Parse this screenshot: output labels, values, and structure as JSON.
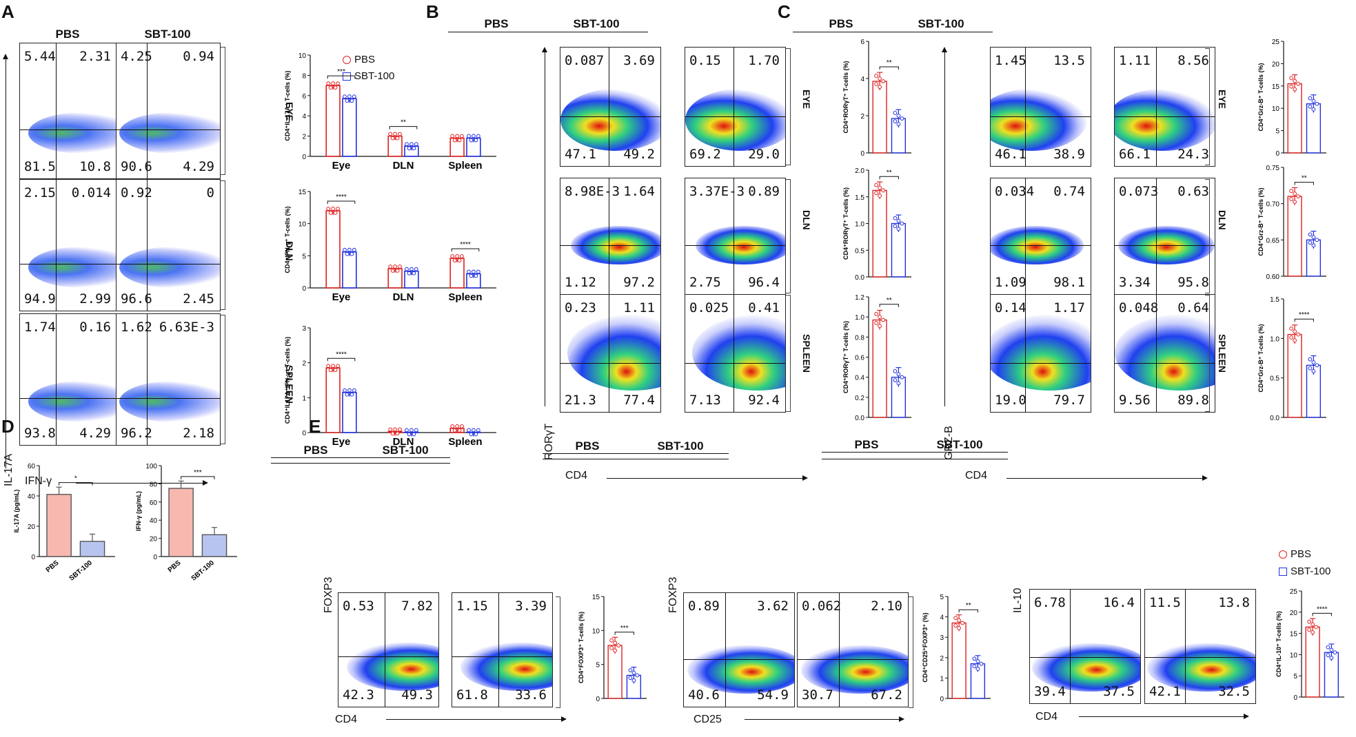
{
  "panels": {
    "A": "A",
    "B": "B",
    "C": "C",
    "D": "D",
    "E": "E"
  },
  "groups": {
    "pbs": "PBS",
    "sbt": "SBT-100"
  },
  "rows": {
    "eye": "EYE",
    "dln": "DLN",
    "spleen": "SPLEEN"
  },
  "axes": {
    "il17a": "IL-17A",
    "ifng": "IFN-γ",
    "rorgt": "RORγT",
    "cd4": "CD4",
    "grzb": "GRZ-B",
    "foxp3": "FOXP3",
    "cd25": "CD25",
    "il10": "IL-10"
  },
  "flow": {
    "A": [
      [
        [
          "5.44",
          "2.31",
          "81.5",
          "10.8"
        ],
        [
          "4.25",
          "0.94",
          "90.6",
          "4.29"
        ]
      ],
      [
        [
          "2.15",
          "0.014",
          "94.9",
          "2.99"
        ],
        [
          "0.92",
          "0",
          "96.6",
          "2.45"
        ]
      ],
      [
        [
          "1.74",
          "0.16",
          "93.8",
          "4.29"
        ],
        [
          "1.62",
          "6.63E-3",
          "96.2",
          "2.18"
        ]
      ]
    ],
    "B": [
      [
        [
          "0.087",
          "3.69",
          "47.1",
          "49.2"
        ],
        [
          "0.15",
          "1.70",
          "69.2",
          "29.0"
        ]
      ],
      [
        [
          "8.98E-3",
          "1.64",
          "1.12",
          "97.2"
        ],
        [
          "3.37E-3",
          "0.89",
          "2.75",
          "96.4"
        ]
      ],
      [
        [
          "0.23",
          "1.11",
          "21.3",
          "77.4"
        ],
        [
          "0.025",
          "0.41",
          "7.13",
          "92.4"
        ]
      ]
    ],
    "C": [
      [
        [
          "1.45",
          "13.5",
          "46.1",
          "38.9"
        ],
        [
          "1.11",
          "8.56",
          "66.1",
          "24.3"
        ]
      ],
      [
        [
          "0.034",
          "0.74",
          "1.09",
          "98.1"
        ],
        [
          "0.073",
          "0.63",
          "3.34",
          "95.8"
        ]
      ],
      [
        [
          "0.14",
          "1.17",
          "19.0",
          "79.7"
        ],
        [
          "0.048",
          "0.64",
          "9.56",
          "89.8"
        ]
      ]
    ],
    "E": [
      [
        [
          "0.53",
          "7.82",
          "42.3",
          "49.3"
        ],
        [
          "1.15",
          "3.39",
          "61.8",
          "33.6"
        ]
      ],
      [
        [
          "0.89",
          "3.62",
          "40.6",
          "54.9"
        ],
        [
          "0.062",
          "2.10",
          "30.7",
          "67.2"
        ]
      ],
      [
        [
          "6.78",
          "16.4",
          "39.4",
          "37.5"
        ],
        [
          "11.5",
          "13.8",
          "42.1",
          "32.5"
        ]
      ]
    ]
  },
  "colors": {
    "pbs": "#e02020",
    "sbt": "#2030e0",
    "pbs_fill": "#f7b8b0",
    "sbt_fill": "#b8c4f0"
  },
  "chart_data": [
    {
      "id": "A1",
      "type": "bar",
      "categories": [
        "Eye",
        "DLN",
        "Spleen"
      ],
      "ylabel": "CD4⁺IL-17A⁺ T-cells (%)",
      "ylim": [
        0,
        10
      ],
      "yticks": [
        "0",
        "2",
        "4",
        "6",
        "8",
        "10"
      ],
      "series": [
        {
          "name": "PBS",
          "values": [
            7.0,
            2.0,
            1.8
          ]
        },
        {
          "name": "SBT-100",
          "values": [
            5.7,
            1.0,
            1.8
          ]
        }
      ],
      "sig": [
        {
          "cat": 0,
          "label": "***"
        },
        {
          "cat": 1,
          "label": "**"
        }
      ]
    },
    {
      "id": "A2",
      "type": "bar",
      "categories": [
        "Eye",
        "DLN",
        "Spleen"
      ],
      "ylabel": "CD4⁺IFN-γ⁺ T-cells (%)",
      "ylim": [
        0,
        15
      ],
      "yticks": [
        "0",
        "5",
        "10",
        "15"
      ],
      "series": [
        {
          "name": "PBS",
          "values": [
            12.0,
            3.0,
            4.6
          ]
        },
        {
          "name": "SBT-100",
          "values": [
            5.6,
            2.6,
            2.2
          ]
        }
      ],
      "sig": [
        {
          "cat": 0,
          "label": "****"
        },
        {
          "cat": 2,
          "label": "****"
        }
      ]
    },
    {
      "id": "A3",
      "type": "bar",
      "categories": [
        "Eye",
        "DLN",
        "Spleen"
      ],
      "ylabel": "CD4⁺IL17A⁺IFN-γ⁺ T-cells (%)",
      "ylim": [
        0,
        3
      ],
      "yticks": [
        "0",
        "1",
        "2",
        "3"
      ],
      "series": [
        {
          "name": "PBS",
          "values": [
            1.85,
            0.03,
            0.12
          ]
        },
        {
          "name": "SBT-100",
          "values": [
            1.15,
            0.01,
            0.01
          ]
        }
      ],
      "sig": [
        {
          "cat": 0,
          "label": "****"
        }
      ]
    },
    {
      "id": "B1",
      "type": "bar",
      "categories": [
        "PBS",
        "SBT-100"
      ],
      "ylabel": "CD4⁺RORγT⁺ T-cells (%)",
      "ylim": [
        0,
        6
      ],
      "yticks": [
        "0",
        "2",
        "4",
        "6"
      ],
      "values": [
        3.85,
        1.85
      ],
      "sig": "**"
    },
    {
      "id": "B2",
      "type": "bar",
      "categories": [
        "PBS",
        "SBT-100"
      ],
      "ylabel": "CD4⁺RORγT⁺ T-cells (%)",
      "ylim": [
        0,
        2
      ],
      "yticks": [
        "0.0",
        "0.5",
        "1.0",
        "1.5",
        "2.0"
      ],
      "values": [
        1.62,
        1.0
      ],
      "sig": "**"
    },
    {
      "id": "B3",
      "type": "bar",
      "categories": [
        "PBS",
        "SBT-100"
      ],
      "ylabel": "CD4⁺RORγT⁺ T-cells (%)",
      "ylim": [
        0,
        1.2
      ],
      "yticks": [
        "0.0",
        "0.2",
        "0.4",
        "0.6",
        "0.8",
        "1.0",
        "1.2"
      ],
      "values": [
        0.97,
        0.4
      ],
      "sig": "**"
    },
    {
      "id": "C1",
      "type": "bar",
      "categories": [
        "PBS",
        "SBT-100"
      ],
      "ylabel": "CD4⁺Grz-B⁺ T-cells (%)",
      "ylim": [
        0,
        25
      ],
      "yticks": [
        "0",
        "5",
        "10",
        "15",
        "20",
        "25"
      ],
      "values": [
        15.5,
        11.0
      ],
      "sig": ""
    },
    {
      "id": "C2",
      "type": "bar",
      "categories": [
        "PBS",
        "SBT-100"
      ],
      "ylabel": "CD4⁺Grz-B⁺ T-cells (%)",
      "ylim": [
        0.6,
        0.75
      ],
      "yticks": [
        "0.60",
        "0.65",
        "0.70",
        "0.75"
      ],
      "values": [
        0.71,
        0.65
      ],
      "sig": "**"
    },
    {
      "id": "C3",
      "type": "bar",
      "categories": [
        "PBS",
        "SBT-100"
      ],
      "ylabel": "CD4⁺Grz-B⁺ T-cells (%)",
      "ylim": [
        0,
        1.5
      ],
      "yticks": [
        "0.0",
        "0.5",
        "1.0",
        "1.5"
      ],
      "values": [
        1.05,
        0.66
      ],
      "sig": "****"
    },
    {
      "id": "D1",
      "type": "bar",
      "categories": [
        "PBS",
        "SBT-100"
      ],
      "ylabel": "IL-17A (pg/mL)",
      "ylim": [
        0,
        60
      ],
      "yticks": [
        "0",
        "20",
        "40",
        "60"
      ],
      "values": [
        41,
        10
      ],
      "sig": "*"
    },
    {
      "id": "D2",
      "type": "bar",
      "categories": [
        "PBS",
        "SBT-100"
      ],
      "ylabel": "IFN-γ (pg/mL)",
      "ylim": [
        0,
        100
      ],
      "yticks": [
        "0",
        "20",
        "40",
        "60",
        "80",
        "100"
      ],
      "values": [
        75,
        24
      ],
      "sig": "***"
    },
    {
      "id": "E1",
      "type": "bar",
      "categories": [
        "PBS",
        "SBT-100"
      ],
      "ylabel": "CD4⁺FOXP3⁺ T-cells (%)",
      "ylim": [
        0,
        15
      ],
      "yticks": [
        "0",
        "5",
        "10",
        "15"
      ],
      "values": [
        7.8,
        3.4
      ],
      "sig": "***"
    },
    {
      "id": "E2",
      "type": "bar",
      "categories": [
        "PBS",
        "SBT-100"
      ],
      "ylabel": "CD4⁺CD25⁺FOXP3⁺ (%)",
      "ylim": [
        0,
        5
      ],
      "yticks": [
        "0",
        "1",
        "2",
        "3",
        "4",
        "5"
      ],
      "values": [
        3.7,
        1.7
      ],
      "sig": "**"
    },
    {
      "id": "E3",
      "type": "bar",
      "categories": [
        "PBS",
        "SBT-100"
      ],
      "ylabel": "CD4⁺IL-10⁺ T-cells (%)",
      "ylim": [
        0,
        25
      ],
      "yticks": [
        "0",
        "5",
        "10",
        "15",
        "20",
        "25"
      ],
      "values": [
        16.5,
        10.5
      ],
      "sig": "****"
    }
  ]
}
